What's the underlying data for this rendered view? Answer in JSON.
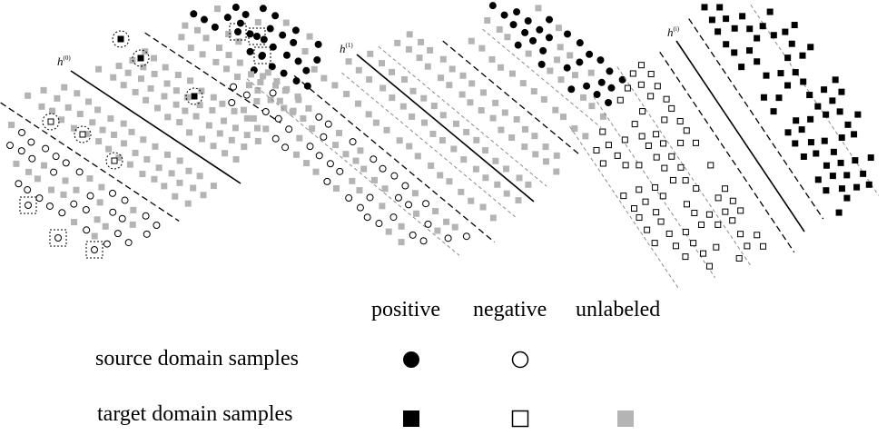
{
  "panels": [
    {
      "hypothesis_base": "h",
      "hypothesis_sup": "(0)"
    },
    {
      "hypothesis_base": "h",
      "hypothesis_sup": "(1)"
    },
    {
      "hypothesis_base": "h",
      "hypothesis_sup": "(i)"
    }
  ],
  "legend": {
    "columns": [
      "positive",
      "negative",
      "unlabeled"
    ],
    "rows": [
      {
        "label": "source domain samples",
        "symbols": [
          "filled-circle",
          "open-circle"
        ]
      },
      {
        "label": "target domain samples",
        "symbols": [
          "filled-square",
          "open-square",
          "gray-square"
        ]
      }
    ]
  },
  "colors": {
    "positive": "#000000",
    "negative": "#ffffff",
    "unlabeled": "#b4b4b4",
    "stroke": "#000000",
    "guide_line": "#8c8c8c"
  }
}
